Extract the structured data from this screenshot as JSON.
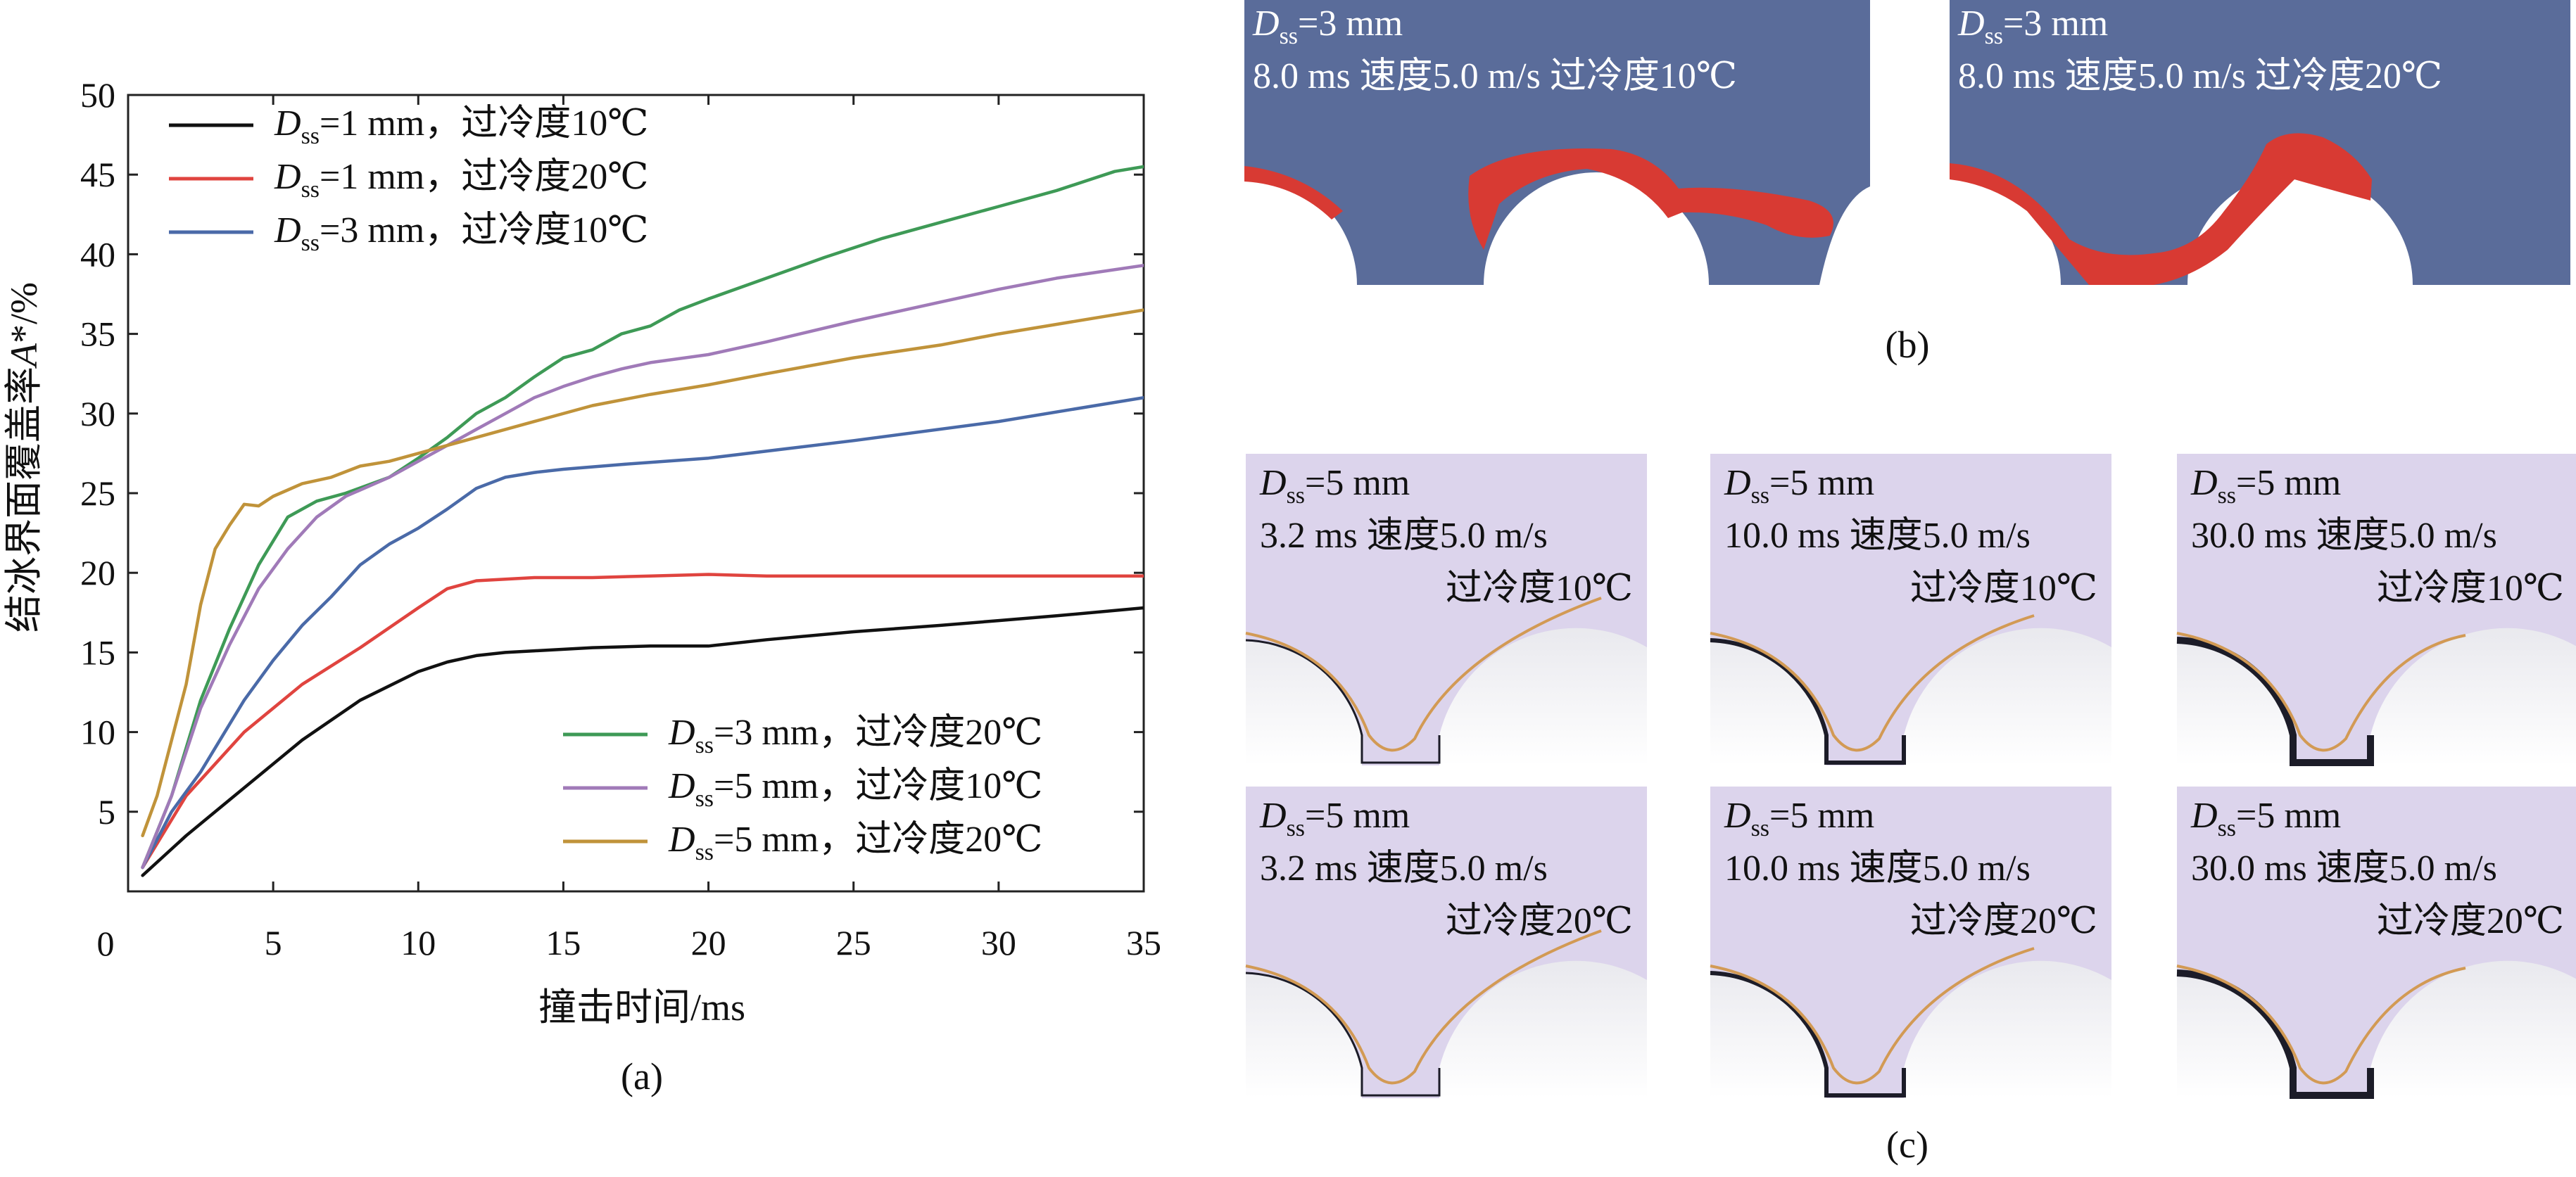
{
  "chart_data": {
    "type": "line",
    "xlabel": "撞击时间/ms",
    "ylabel": "结冰界面覆盖率A*/%",
    "ylabel_main": "结冰界面覆盖率",
    "ylabel_var": "A",
    "ylabel_rest": "*/%",
    "xlim": [
      0,
      35
    ],
    "ylim": [
      0,
      50
    ],
    "xticks": [
      0,
      5,
      10,
      15,
      20,
      25,
      30,
      35
    ],
    "yticks": [
      5,
      10,
      15,
      20,
      25,
      30,
      35,
      40,
      45,
      50
    ],
    "grid": false,
    "legend_placement": "top-left and bottom-right",
    "series": [
      {
        "name": "Dss=1 mm，过冷度10℃",
        "label_rest": "=1 mm，过冷度10℃",
        "color": "#111111",
        "x": [
          0.5,
          2,
          4,
          6,
          8,
          10,
          11,
          12,
          13,
          14,
          16,
          18,
          20,
          22,
          25,
          28,
          30,
          32,
          35
        ],
        "y": [
          1.0,
          3.5,
          6.5,
          9.5,
          12.0,
          13.8,
          14.4,
          14.8,
          15.0,
          15.1,
          15.3,
          15.4,
          15.4,
          15.8,
          16.3,
          16.7,
          17.0,
          17.3,
          17.8
        ]
      },
      {
        "name": "Dss=1 mm，过冷度20℃",
        "label_rest": "=1 mm，过冷度20℃",
        "color": "#e0443f",
        "x": [
          0.5,
          2,
          4,
          6,
          8,
          10,
          11,
          12,
          13,
          14,
          16,
          18,
          20,
          22,
          25,
          28,
          30,
          32,
          35
        ],
        "y": [
          1.5,
          6.0,
          10.0,
          13.0,
          15.3,
          17.8,
          19.0,
          19.5,
          19.6,
          19.7,
          19.7,
          19.8,
          19.9,
          19.8,
          19.8,
          19.8,
          19.8,
          19.8,
          19.8
        ]
      },
      {
        "name": "Dss=3 mm，过冷度10℃",
        "label_rest": "=3 mm，过冷度10℃",
        "color": "#4a6aa8",
        "x": [
          0.5,
          1.5,
          2.5,
          3,
          4,
          5,
          6,
          7,
          8,
          9,
          10,
          11,
          12,
          13,
          14,
          15,
          17,
          20,
          25,
          30,
          35
        ],
        "y": [
          1.5,
          5.0,
          7.5,
          9.0,
          12.0,
          14.5,
          16.7,
          18.5,
          20.5,
          21.8,
          22.8,
          24.0,
          25.3,
          26.0,
          26.3,
          26.5,
          26.8,
          27.2,
          28.3,
          29.5,
          31.0
        ]
      },
      {
        "name": "Dss=3 mm，过冷度20℃",
        "label_rest": "=3 mm，过冷度20℃",
        "color": "#3e9a56",
        "x": [
          0.5,
          1.5,
          2.5,
          3.5,
          4.5,
          5.5,
          6.5,
          7.5,
          9,
          10,
          11,
          12,
          13,
          14,
          15,
          16,
          17,
          18,
          19,
          20,
          22,
          24,
          26,
          28,
          30,
          32,
          34,
          35
        ],
        "y": [
          1.5,
          6.0,
          12.0,
          16.5,
          20.5,
          23.5,
          24.5,
          25.0,
          26.0,
          27.2,
          28.5,
          30.0,
          31.0,
          32.3,
          33.5,
          34.0,
          35.0,
          35.5,
          36.5,
          37.2,
          38.5,
          39.8,
          41.0,
          42.0,
          43.0,
          44.0,
          45.2,
          45.5
        ]
      },
      {
        "name": "Dss=5 mm，过冷度10℃",
        "label_rest": "=5 mm，过冷度10℃",
        "color": "#a07ab8",
        "x": [
          0.5,
          1.5,
          2.5,
          3.5,
          4.5,
          5.5,
          6.5,
          7.5,
          9,
          10,
          11,
          12,
          13,
          14,
          15,
          16,
          17,
          18,
          20,
          22,
          25,
          28,
          30,
          32,
          35
        ],
        "y": [
          1.5,
          6.0,
          11.5,
          15.5,
          19.0,
          21.5,
          23.5,
          24.8,
          26.0,
          27.0,
          28.0,
          29.0,
          30.0,
          31.0,
          31.7,
          32.3,
          32.8,
          33.2,
          33.7,
          34.5,
          35.8,
          37.0,
          37.8,
          38.5,
          39.3
        ]
      },
      {
        "name": "Dss=5 mm，过冷度20℃",
        "label_rest": "=5 mm，过冷度20℃",
        "color": "#c0933a",
        "x": [
          0.5,
          1,
          2,
          2.5,
          3,
          3.5,
          4,
          4.5,
          5,
          5.5,
          6,
          7,
          8,
          9,
          10,
          12,
          14,
          16,
          18,
          20,
          22,
          25,
          28,
          30,
          32,
          35
        ],
        "y": [
          3.5,
          6.0,
          13.0,
          18.0,
          21.5,
          23.0,
          24.3,
          24.2,
          24.8,
          25.2,
          25.6,
          26.0,
          26.7,
          27.0,
          27.5,
          28.5,
          29.5,
          30.5,
          31.2,
          31.8,
          32.5,
          33.5,
          34.3,
          35.0,
          35.6,
          36.5
        ]
      }
    ]
  },
  "sub_a": {
    "label": "(a)",
    "origin_label": "0"
  },
  "sub_b": {
    "label": "(b)",
    "panels": [
      {
        "d_rest": "=3 mm",
        "line2": "8.0 ms 速度5.0 m/s 过冷度10℃"
      },
      {
        "d_rest": "=3 mm",
        "line2": "8.0 ms 速度5.0 m/s 过冷度20℃"
      }
    ]
  },
  "sub_c": {
    "label": "(c)",
    "panels": [
      {
        "d_rest": "=5 mm",
        "line2": "3.2 ms 速度5.0 m/s",
        "line3": "过冷度10℃"
      },
      {
        "d_rest": "=5 mm",
        "line2": "10.0 ms 速度5.0 m/s",
        "line3": "过冷度10℃"
      },
      {
        "d_rest": "=5 mm",
        "line2": "30.0 ms 速度5.0 m/s",
        "line3": "过冷度10℃"
      },
      {
        "d_rest": "=5 mm",
        "line2": "3.2 ms 速度5.0 m/s",
        "line3": "过冷度20℃"
      },
      {
        "d_rest": "=5 mm",
        "line2": "10.0 ms 速度5.0 m/s",
        "line3": "过冷度20℃"
      },
      {
        "d_rest": "=5 mm",
        "line2": "30.0 ms 速度5.0 m/s",
        "line3": "过冷度20℃"
      }
    ]
  },
  "symbol": {
    "d": "D",
    "sub": "ss"
  },
  "colors": {
    "panel_b_bg": "#5a6c9a",
    "panel_b_ice": "#d83a33",
    "panel_c_bg": "#dcd4ec",
    "panel_c_line": "#d29a54",
    "panel_c_ice": "#1c1c28"
  }
}
